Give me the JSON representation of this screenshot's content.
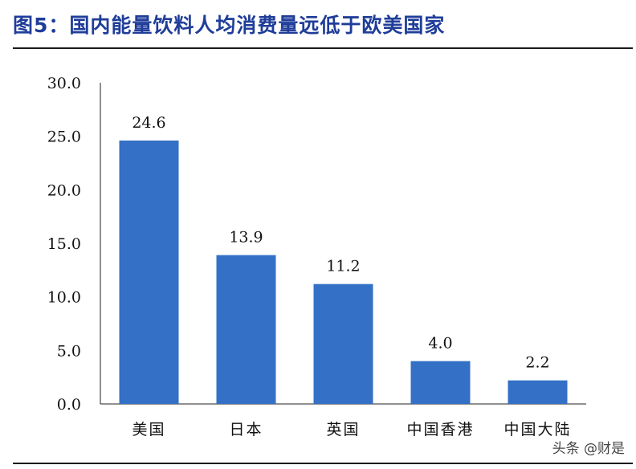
{
  "header": {
    "title": "图5：国内能量饮料人均消费量远低于欧美国家"
  },
  "watermark": "头条 @财是",
  "colors": {
    "bar": "#3470c6",
    "title": "#1f3d99"
  },
  "chart_data": {
    "type": "bar",
    "title": "图5：国内能量饮料人均消费量远低于欧美国家",
    "categories": [
      "美国",
      "日本",
      "英国",
      "中国香港",
      "中国大陆"
    ],
    "values": [
      24.6,
      13.9,
      11.2,
      4.0,
      2.2
    ],
    "value_labels": [
      "24.6",
      "13.9",
      "11.2",
      "4.0",
      "2.2"
    ],
    "ylim": [
      0,
      30
    ],
    "yticks": [
      "0.0",
      "5.0",
      "10.0",
      "15.0",
      "20.0",
      "25.0",
      "30.0"
    ],
    "xlabel": "",
    "ylabel": "",
    "grid": false,
    "legend": "none"
  }
}
